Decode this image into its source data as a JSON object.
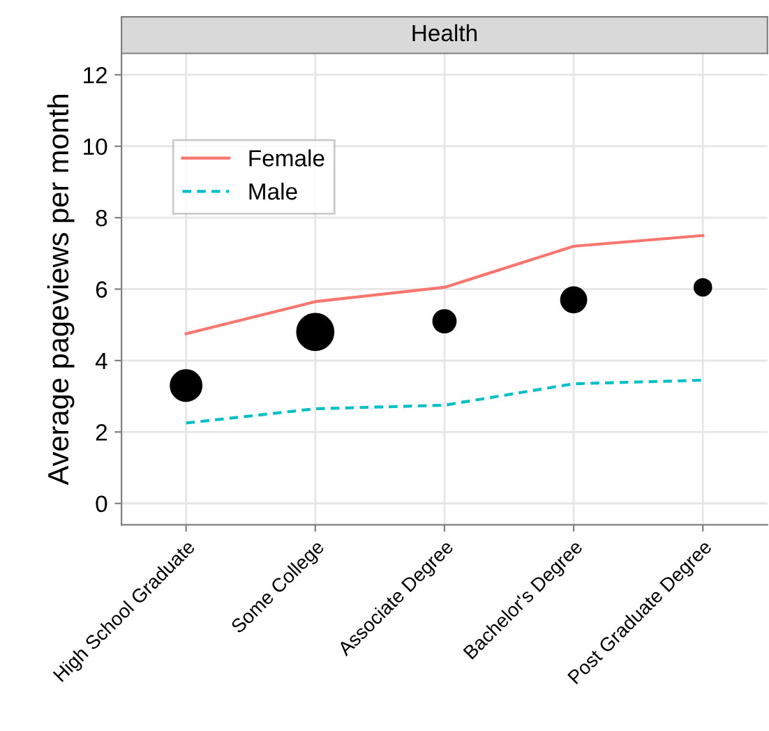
{
  "chart_data": {
    "type": "line",
    "title": "Health",
    "ylabel": "Average pageviews per month",
    "categories": [
      "High School Graduate",
      "Some College",
      "Associate Degree",
      "Bachelor's Degree",
      "Post Graduate Degree"
    ],
    "series": [
      {
        "name": "Female",
        "color": "#f8766d",
        "line_style": "solid",
        "values": [
          4.75,
          5.65,
          6.05,
          7.2,
          7.5
        ]
      },
      {
        "name": "Male",
        "color": "#00bfc4",
        "line_style": "dashed",
        "values": [
          2.25,
          2.65,
          2.75,
          3.35,
          3.45
        ]
      },
      {
        "type": "bubble",
        "color": "#000000",
        "values": [
          3.3,
          4.8,
          5.1,
          5.7,
          6.05
        ],
        "sizes": [
          0.72,
          1,
          0.38,
          0.48,
          0.21
        ]
      }
    ],
    "ylim": [
      -0.6,
      12.6
    ],
    "yticks": [
      0,
      2,
      4,
      6,
      8,
      10,
      12
    ],
    "grid": true,
    "legend": "top left"
  }
}
